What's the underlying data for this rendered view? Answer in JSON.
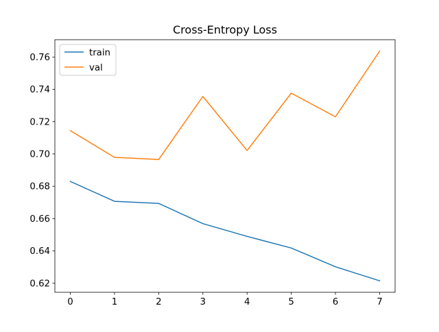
{
  "chart_data": {
    "type": "line",
    "title": "Cross-Entropy Loss",
    "xlabel": "",
    "ylabel": "",
    "x": [
      0,
      1,
      2,
      3,
      4,
      5,
      6,
      7
    ],
    "series": [
      {
        "name": "train",
        "color": "#1f77b4",
        "values": [
          0.683,
          0.6707,
          0.6694,
          0.6569,
          0.649,
          0.6418,
          0.6302,
          0.6215
        ]
      },
      {
        "name": "val",
        "color": "#ff7f0e",
        "values": [
          0.7144,
          0.6979,
          0.6966,
          0.7356,
          0.7021,
          0.7376,
          0.723,
          0.7636
        ]
      }
    ],
    "xlim": [
      -0.35,
      7.35
    ],
    "ylim": [
      0.6144,
      0.7707
    ],
    "xticks": [
      0,
      1,
      2,
      3,
      4,
      5,
      6,
      7
    ],
    "xtick_labels": [
      "0",
      "1",
      "2",
      "3",
      "4",
      "5",
      "6",
      "7"
    ],
    "yticks": [
      0.62,
      0.64,
      0.66,
      0.68,
      0.7,
      0.72,
      0.74,
      0.76
    ],
    "ytick_labels": [
      "0.62",
      "0.64",
      "0.66",
      "0.68",
      "0.70",
      "0.72",
      "0.74",
      "0.76"
    ],
    "grid": false,
    "legend_position": "top-left"
  }
}
